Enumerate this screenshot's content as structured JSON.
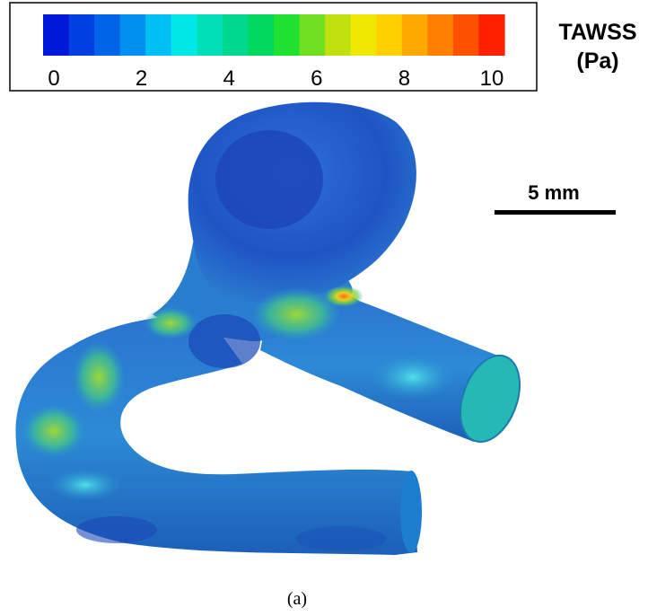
{
  "colorbar": {
    "title_line1": "TAWSS",
    "title_line2": "(Pa)",
    "min": 0,
    "max": 10,
    "ticks": [
      "0",
      "2",
      "4",
      "6",
      "8",
      "10"
    ],
    "colors": [
      "#0018d8",
      "#0040e0",
      "#0064e8",
      "#0090f0",
      "#00c0f4",
      "#00e8e8",
      "#00e0b8",
      "#00d890",
      "#00d860",
      "#20e030",
      "#70e020",
      "#c0e010",
      "#f0e800",
      "#ffd000",
      "#ffa800",
      "#ff8000",
      "#ff5000",
      "#ff2000"
    ]
  },
  "scale_bar": {
    "label": "5 mm"
  },
  "caption": "(a)",
  "colors": {
    "vessel_base": "#1e78c8",
    "vessel_dark": "#1a4fb0",
    "dome": "#2157c8",
    "high_wss": "#c8e030",
    "peak_wss": "#ff7020",
    "outlet_face": "#24b8b0"
  }
}
